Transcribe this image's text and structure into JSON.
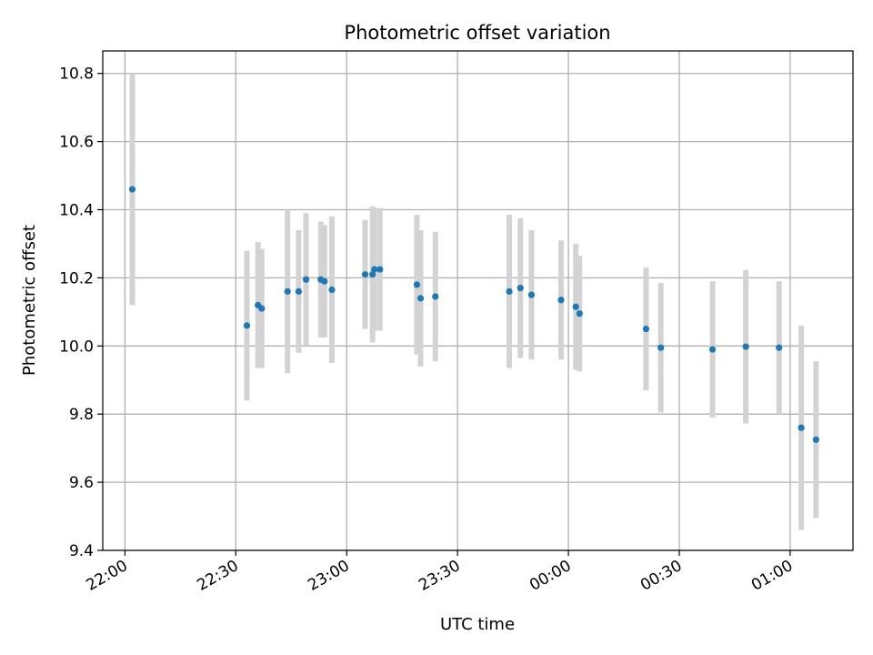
{
  "chart_data": {
    "type": "scatter",
    "title": "Photometric offset variation",
    "xlabel": "UTC time",
    "ylabel": "Photometric offset",
    "ylim": [
      9.4,
      10.866
    ],
    "xlim": [
      "21:54",
      "01:17"
    ],
    "yticks": [
      9.4,
      9.6,
      9.8,
      10.0,
      10.2,
      10.4,
      10.6,
      10.8
    ],
    "xticks": [
      "22:00",
      "22:30",
      "23:00",
      "23:30",
      "00:00",
      "00:30",
      "01:00"
    ],
    "grid": true,
    "error_bars": true,
    "colors": {
      "point": "#1f77b4",
      "error_bar": "#d3d3d3",
      "grid": "#b0b0b0"
    },
    "points": [
      {
        "time": "22:02",
        "y": 10.46,
        "err": 0.34
      },
      {
        "time": "22:33",
        "y": 10.06,
        "err": 0.22
      },
      {
        "time": "22:36",
        "y": 10.12,
        "err": 0.185
      },
      {
        "time": "22:37",
        "y": 10.11,
        "err": 0.175
      },
      {
        "time": "22:44",
        "y": 10.16,
        "err": 0.24
      },
      {
        "time": "22:47",
        "y": 10.16,
        "err": 0.18
      },
      {
        "time": "22:49",
        "y": 10.195,
        "err": 0.195
      },
      {
        "time": "22:53",
        "y": 10.195,
        "err": 0.17
      },
      {
        "time": "22:54",
        "y": 10.19,
        "err": 0.165
      },
      {
        "time": "22:56",
        "y": 10.165,
        "err": 0.215
      },
      {
        "time": "23:05",
        "y": 10.21,
        "err": 0.16
      },
      {
        "time": "23:07",
        "y": 10.21,
        "err": 0.2
      },
      {
        "time": "23:07.5",
        "y": 10.225,
        "err": 0.18
      },
      {
        "time": "23:09",
        "y": 10.225,
        "err": 0.18
      },
      {
        "time": "23:19",
        "y": 10.18,
        "err": 0.205
      },
      {
        "time": "23:20",
        "y": 10.14,
        "err": 0.2
      },
      {
        "time": "23:24",
        "y": 10.145,
        "err": 0.19
      },
      {
        "time": "23:44",
        "y": 10.16,
        "err": 0.225
      },
      {
        "time": "23:47",
        "y": 10.17,
        "err": 0.205
      },
      {
        "time": "23:50",
        "y": 10.15,
        "err": 0.19
      },
      {
        "time": "23:58",
        "y": 10.135,
        "err": 0.175
      },
      {
        "time": "00:02",
        "y": 10.115,
        "err": 0.185
      },
      {
        "time": "00:03",
        "y": 10.095,
        "err": 0.17
      },
      {
        "time": "00:21",
        "y": 10.05,
        "err": 0.18
      },
      {
        "time": "00:25",
        "y": 9.995,
        "err": 0.19
      },
      {
        "time": "00:39",
        "y": 9.99,
        "err": 0.2
      },
      {
        "time": "00:48",
        "y": 9.998,
        "err": 0.225
      },
      {
        "time": "00:57",
        "y": 9.995,
        "err": 0.195
      },
      {
        "time": "01:03",
        "y": 9.76,
        "err": 0.3
      },
      {
        "time": "01:07",
        "y": 9.725,
        "err": 0.23
      }
    ]
  }
}
